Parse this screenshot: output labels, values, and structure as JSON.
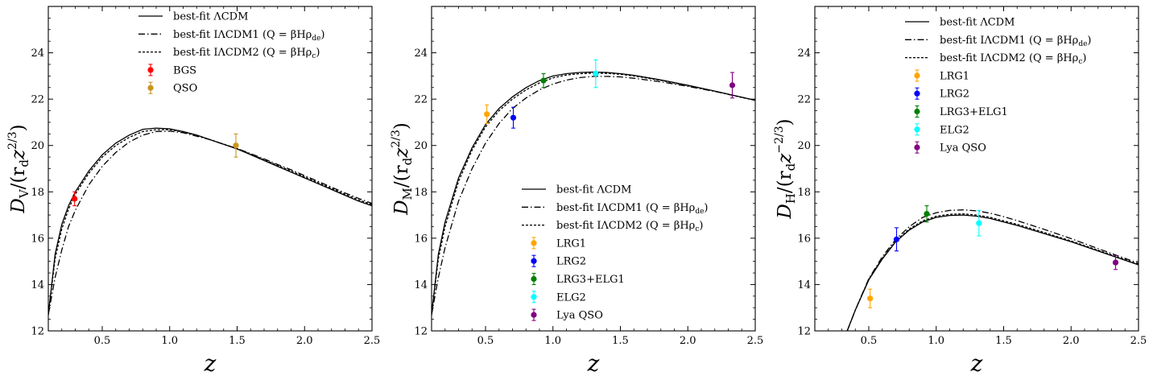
{
  "chart_data": [
    {
      "type": "line",
      "xlabel": "z",
      "ylabel": "D_V/(r_d z^{2/3})",
      "ylabel_main": "D",
      "ylabel_sub": "V",
      "ylabel_rest": "/(r",
      "ylabel_rsub": "d",
      "ylabel_z": "z",
      "ylabel_exp": "2/3",
      "ylabel_close": ")",
      "xlim": [
        0.1,
        2.5
      ],
      "ylim": [
        12,
        26
      ],
      "xticks": [
        "0.5",
        "1.0",
        "1.5",
        "2.0",
        "2.5"
      ],
      "yticks": [
        "12",
        "14",
        "16",
        "18",
        "20",
        "22",
        "24"
      ],
      "legend_position": "top-center",
      "series": [
        {
          "name": "best-fit ΛCDM",
          "style": "solid",
          "x": [
            0.1,
            0.15,
            0.2,
            0.25,
            0.3,
            0.4,
            0.5,
            0.6,
            0.7,
            0.8,
            0.9,
            1.0,
            1.1,
            1.2,
            1.3,
            1.4,
            1.5,
            1.6,
            1.7,
            1.8,
            1.9,
            2.0,
            2.1,
            2.2,
            2.3,
            2.4,
            2.5
          ],
          "y": [
            12.7,
            15.3,
            16.6,
            17.4,
            18.0,
            18.9,
            19.6,
            20.1,
            20.45,
            20.7,
            20.75,
            20.72,
            20.6,
            20.45,
            20.25,
            20.05,
            19.85,
            19.6,
            19.35,
            19.1,
            18.85,
            18.6,
            18.35,
            18.1,
            17.85,
            17.6,
            17.4
          ]
        },
        {
          "name": "best-fit IΛCDM1 (Q = βHρ_de)",
          "style": "dashdot",
          "x": [
            0.1,
            0.15,
            0.2,
            0.25,
            0.3,
            0.4,
            0.5,
            0.6,
            0.7,
            0.8,
            0.9,
            1.0,
            1.1,
            1.2,
            1.3,
            1.4,
            1.5,
            1.6,
            1.7,
            1.8,
            1.9,
            2.0,
            2.1,
            2.2,
            2.3,
            2.4,
            2.5
          ],
          "y": [
            12.7,
            14.3,
            15.5,
            16.5,
            17.2,
            18.3,
            19.1,
            19.7,
            20.15,
            20.45,
            20.6,
            20.62,
            20.55,
            20.4,
            20.25,
            20.05,
            19.87,
            19.65,
            19.42,
            19.18,
            18.95,
            18.7,
            18.45,
            18.2,
            17.95,
            17.72,
            17.5
          ]
        },
        {
          "name": "best-fit IΛCDM2 (Q = βHρ_c)",
          "style": "dashed",
          "x": [
            0.1,
            0.15,
            0.2,
            0.25,
            0.3,
            0.4,
            0.5,
            0.6,
            0.7,
            0.8,
            0.9,
            1.0,
            1.1,
            1.2,
            1.3,
            1.4,
            1.5,
            1.6,
            1.7,
            1.8,
            1.9,
            2.0,
            2.1,
            2.2,
            2.3,
            2.4,
            2.5
          ],
          "y": [
            12.7,
            15.1,
            16.4,
            17.25,
            17.9,
            18.8,
            19.5,
            20.0,
            20.35,
            20.6,
            20.68,
            20.68,
            20.58,
            20.43,
            20.25,
            20.06,
            19.87,
            19.63,
            19.39,
            19.14,
            18.9,
            18.65,
            18.4,
            18.15,
            17.9,
            17.66,
            17.45
          ]
        }
      ],
      "points": [
        {
          "name": "BGS",
          "color": "#ff0000",
          "x": 0.295,
          "y": 17.7,
          "err": 0.3
        },
        {
          "name": "QSO",
          "color": "#c8961e",
          "x": 1.491,
          "y": 20.0,
          "err": 0.5
        }
      ],
      "legend_labels": [
        {
          "key": "lcdm",
          "text": "best-fit ΛCDM"
        },
        {
          "key": "i1",
          "text": "best-fit IΛCDM1 (Q = βHρ",
          "sub": "de",
          "close": ")"
        },
        {
          "key": "i2",
          "text": "best-fit IΛCDM2 (Q = βHρ",
          "sub": "c",
          "close": ")"
        },
        {
          "key": "p1",
          "text": "BGS"
        },
        {
          "key": "p2",
          "text": "QSO"
        }
      ]
    },
    {
      "type": "line",
      "xlabel": "z",
      "ylabel": "D_M/(r_d z^{2/3})",
      "ylabel_main": "D",
      "ylabel_sub": "M",
      "ylabel_rest": "/(r",
      "ylabel_rsub": "d",
      "ylabel_z": "z",
      "ylabel_exp": "2/3",
      "ylabel_close": ")",
      "xlim": [
        0.1,
        2.5
      ],
      "ylim": [
        12,
        26
      ],
      "xticks": [
        "0.5",
        "1.0",
        "1.5",
        "2.0",
        "2.5"
      ],
      "yticks": [
        "12",
        "14",
        "16",
        "18",
        "20",
        "22",
        "24"
      ],
      "legend_position": "lower-right",
      "series": [
        {
          "name": "best-fit ΛCDM",
          "style": "solid",
          "x": [
            0.1,
            0.15,
            0.2,
            0.3,
            0.4,
            0.5,
            0.6,
            0.7,
            0.8,
            0.9,
            1.0,
            1.1,
            1.2,
            1.3,
            1.4,
            1.5,
            1.6,
            1.8,
            2.0,
            2.2,
            2.4,
            2.5
          ],
          "y": [
            12.7,
            15.3,
            16.7,
            18.6,
            19.9,
            20.9,
            21.6,
            22.1,
            22.5,
            22.8,
            23.0,
            23.1,
            23.15,
            23.17,
            23.15,
            23.1,
            23.03,
            22.83,
            22.6,
            22.35,
            22.08,
            21.95
          ]
        },
        {
          "name": "best-fit IΛCDM1 (Q = βHρ_de)",
          "style": "dashdot",
          "x": [
            0.1,
            0.15,
            0.2,
            0.3,
            0.4,
            0.5,
            0.6,
            0.7,
            0.8,
            0.9,
            1.0,
            1.1,
            1.2,
            1.3,
            1.4,
            1.5,
            1.6,
            1.8,
            2.0,
            2.2,
            2.4,
            2.5
          ],
          "y": [
            12.7,
            14.3,
            15.6,
            17.6,
            19.0,
            20.1,
            20.95,
            21.6,
            22.05,
            22.4,
            22.65,
            22.82,
            22.93,
            22.98,
            22.98,
            22.96,
            22.9,
            22.75,
            22.55,
            22.33,
            22.08,
            21.95
          ]
        },
        {
          "name": "best-fit IΛCDM2 (Q = βHρ_c)",
          "style": "dashed",
          "x": [
            0.1,
            0.15,
            0.2,
            0.3,
            0.4,
            0.5,
            0.6,
            0.7,
            0.8,
            0.9,
            1.0,
            1.1,
            1.2,
            1.3,
            1.4,
            1.5,
            1.6,
            1.8,
            2.0,
            2.2,
            2.4,
            2.5
          ],
          "y": [
            12.7,
            15.1,
            16.5,
            18.45,
            19.8,
            20.8,
            21.5,
            22.0,
            22.4,
            22.7,
            22.92,
            23.04,
            23.1,
            23.12,
            23.11,
            23.07,
            23.0,
            22.81,
            22.58,
            22.34,
            22.07,
            21.95
          ]
        }
      ],
      "points": [
        {
          "name": "LRG1",
          "color": "#ffa500",
          "x": 0.51,
          "y": 21.35,
          "err": 0.4
        },
        {
          "name": "LRG2",
          "color": "#0000ff",
          "x": 0.706,
          "y": 21.2,
          "err": 0.45
        },
        {
          "name": "LRG3+ELG1",
          "color": "#008000",
          "x": 0.93,
          "y": 22.8,
          "err": 0.3
        },
        {
          "name": "ELG2",
          "color": "#00ffff",
          "x": 1.317,
          "y": 23.1,
          "err": 0.6
        },
        {
          "name": "Lya QSO",
          "color": "#800080",
          "x": 2.33,
          "y": 22.6,
          "err": 0.55
        }
      ],
      "legend_labels": [
        {
          "key": "lcdm",
          "text": "best-fit ΛCDM"
        },
        {
          "key": "i1",
          "text": "best-fit IΛCDM1 (Q = βHρ",
          "sub": "de",
          "close": ")"
        },
        {
          "key": "i2",
          "text": "best-fit IΛCDM2 (Q = βHρ",
          "sub": "c",
          "close": ")"
        },
        {
          "key": "p1",
          "text": "LRG1"
        },
        {
          "key": "p2",
          "text": "LRG2"
        },
        {
          "key": "p3",
          "text": "LRG3+ELG1"
        },
        {
          "key": "p4",
          "text": "ELG2"
        },
        {
          "key": "p5",
          "text": "Lya QSO"
        }
      ]
    },
    {
      "type": "line",
      "xlabel": "z",
      "ylabel": "D_H/(r_d z^{-2/3})",
      "ylabel_main": "D",
      "ylabel_sub": "H",
      "ylabel_rest": "/(r",
      "ylabel_rsub": "d",
      "ylabel_z": "z",
      "ylabel_exp": "−2/3",
      "ylabel_close": ")",
      "xlim": [
        0.1,
        2.5
      ],
      "ylim": [
        12,
        26
      ],
      "xticks": [
        "0.5",
        "1.0",
        "1.5",
        "2.0",
        "2.5"
      ],
      "yticks": [
        "12",
        "14",
        "16",
        "18",
        "20",
        "22",
        "24"
      ],
      "legend_position": "top-right",
      "series": [
        {
          "name": "best-fit ΛCDM",
          "style": "solid",
          "x": [
            0.34,
            0.4,
            0.5,
            0.6,
            0.7,
            0.8,
            0.9,
            1.0,
            1.1,
            1.2,
            1.3,
            1.4,
            1.5,
            1.6,
            1.8,
            2.0,
            2.2,
            2.4,
            2.5
          ],
          "y": [
            12.0,
            12.9,
            14.2,
            15.1,
            15.85,
            16.35,
            16.7,
            16.9,
            16.98,
            17.0,
            16.95,
            16.85,
            16.7,
            16.55,
            16.2,
            15.85,
            15.45,
            15.05,
            14.85
          ]
        },
        {
          "name": "best-fit IΛCDM1 (Q = βHρ_de)",
          "style": "dashdot",
          "x": [
            0.34,
            0.4,
            0.5,
            0.6,
            0.7,
            0.8,
            0.9,
            1.0,
            1.1,
            1.2,
            1.3,
            1.4,
            1.5,
            1.6,
            1.8,
            2.0,
            2.2,
            2.4,
            2.5
          ],
          "y": [
            12.0,
            12.9,
            14.25,
            15.2,
            15.95,
            16.5,
            16.9,
            17.1,
            17.2,
            17.22,
            17.18,
            17.08,
            16.93,
            16.76,
            16.38,
            15.98,
            15.55,
            15.13,
            14.92
          ]
        },
        {
          "name": "best-fit IΛCDM2 (Q = βHρ_c)",
          "style": "dashed",
          "x": [
            0.34,
            0.4,
            0.5,
            0.6,
            0.7,
            0.8,
            0.9,
            1.0,
            1.1,
            1.2,
            1.3,
            1.4,
            1.5,
            1.6,
            1.8,
            2.0,
            2.2,
            2.4,
            2.5
          ],
          "y": [
            12.0,
            12.9,
            14.22,
            15.13,
            15.88,
            16.4,
            16.75,
            16.95,
            17.03,
            17.05,
            17.0,
            16.9,
            16.75,
            16.6,
            16.25,
            15.88,
            15.48,
            15.08,
            14.87
          ]
        }
      ],
      "points": [
        {
          "name": "LRG1",
          "color": "#ffa500",
          "x": 0.51,
          "y": 13.4,
          "err": 0.4
        },
        {
          "name": "LRG2",
          "color": "#0000ff",
          "x": 0.706,
          "y": 15.95,
          "err": 0.5
        },
        {
          "name": "LRG3+ELG1",
          "color": "#008000",
          "x": 0.93,
          "y": 17.05,
          "err": 0.35
        },
        {
          "name": "ELG2",
          "color": "#00ffff",
          "x": 1.317,
          "y": 16.65,
          "err": 0.55
        },
        {
          "name": "Lya QSO",
          "color": "#800080",
          "x": 2.33,
          "y": 14.95,
          "err": 0.3
        }
      ],
      "legend_labels": [
        {
          "key": "lcdm",
          "text": "best-fit ΛCDM"
        },
        {
          "key": "i1",
          "text": "best-fit IΛCDM1 (Q = βHρ",
          "sub": "de",
          "close": ")"
        },
        {
          "key": "i2",
          "text": "best-fit IΛCDM2 (Q = βHρ",
          "sub": "c",
          "close": ")"
        },
        {
          "key": "p1",
          "text": "LRG1"
        },
        {
          "key": "p2",
          "text": "LRG2"
        },
        {
          "key": "p3",
          "text": "LRG3+ELG1"
        },
        {
          "key": "p4",
          "text": "ELG2"
        },
        {
          "key": "p5",
          "text": "Lya QSO"
        }
      ]
    }
  ]
}
